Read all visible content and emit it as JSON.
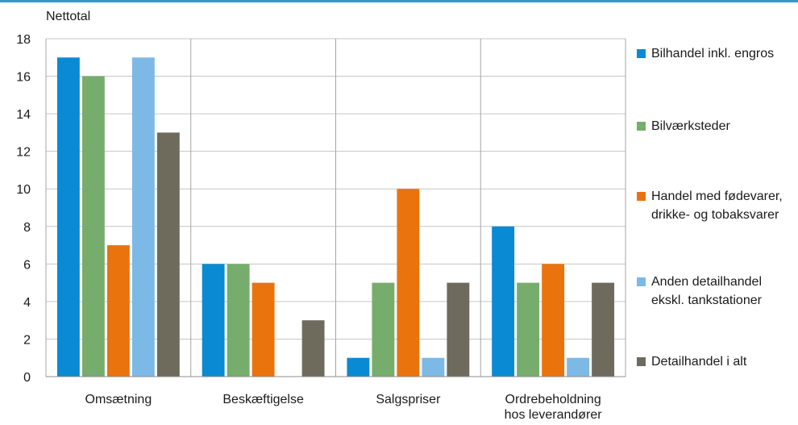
{
  "chart_data": {
    "type": "bar",
    "ylabel": "Nettotal",
    "ylim": [
      0,
      18
    ],
    "yticks": [
      0,
      2,
      4,
      6,
      8,
      10,
      12,
      14,
      16,
      18
    ],
    "grid": true,
    "legend_position": "right",
    "categories": [
      "Omsætning",
      "Beskæftigelse",
      "Salgspriser",
      "Ordrebeholdning\nhos leverandører"
    ],
    "series": [
      {
        "name": "Bilhandel inkl. engros",
        "color": "#0a8ad3",
        "values": [
          17,
          6,
          1,
          8
        ]
      },
      {
        "name": "Bilværksteder",
        "color": "#76ad6d",
        "values": [
          16,
          6,
          5,
          5
        ]
      },
      {
        "name": "Handel med fødevarer,\ndrikke- og tobaksvarer",
        "color": "#ea730e",
        "values": [
          7,
          5,
          10,
          6
        ]
      },
      {
        "name": "Anden detailhandel\nekskl. tankstationer",
        "color": "#7cb9e6",
        "values": [
          17,
          0,
          1,
          1
        ]
      },
      {
        "name": "Detailhandel i alt",
        "color": "#6e6b5d",
        "values": [
          13,
          3,
          5,
          5
        ]
      }
    ]
  }
}
